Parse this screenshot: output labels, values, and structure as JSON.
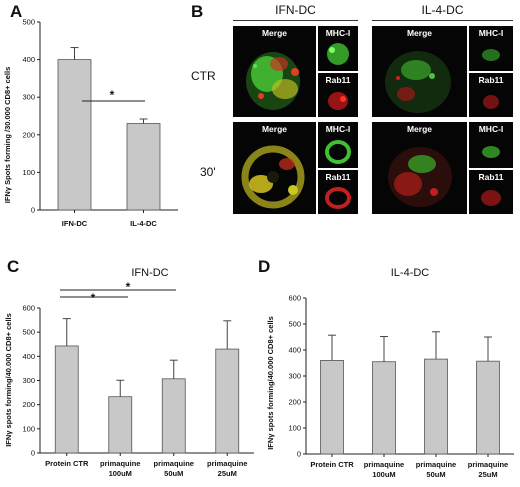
{
  "figure": {
    "panel_a": {
      "letter": "A",
      "ylabel": "IFNγ Spots forming /30.000 CD8+ cells",
      "significance": "*"
    },
    "panel_b": {
      "letter": "B",
      "groups": [
        "IFN-DC",
        "IL-4-DC"
      ],
      "rows": [
        "CTR",
        "30'"
      ],
      "tile_labels": {
        "merge": "Merge",
        "mhc": "MHC-I",
        "rab": "Rab11"
      }
    },
    "panel_c": {
      "letter": "C",
      "title": "IFN-DC",
      "ylabel": "IFNγ spots forming/40.000 CD8+ cells",
      "significance": [
        "*",
        "*"
      ]
    },
    "panel_d": {
      "letter": "D",
      "title": "IL-4-DC",
      "ylabel": "IFNγ spots forming/40.000 CD8+ cells"
    }
  },
  "chart_data": [
    {
      "id": "A",
      "type": "bar",
      "categories": [
        "IFN-DC",
        "IL-4-DC"
      ],
      "values": [
        400,
        230
      ],
      "errors": [
        32,
        12
      ],
      "ylim": [
        0,
        500
      ],
      "yticks": [
        0,
        100,
        200,
        300,
        400,
        500
      ],
      "ylabel": "IFNγ Spots forming /30.000 CD8+ cells",
      "title": ""
    },
    {
      "id": "C",
      "type": "bar",
      "categories": [
        [
          "Protein CTR"
        ],
        [
          "primaquine",
          "100uM"
        ],
        [
          "primaquine",
          "50uM"
        ],
        [
          "primaquine",
          "25uM"
        ]
      ],
      "values": [
        443,
        233,
        307,
        430
      ],
      "errors": [
        113,
        68,
        77,
        117
      ],
      "ylim": [
        0,
        600
      ],
      "yticks": [
        0,
        100,
        200,
        300,
        400,
        500,
        600
      ],
      "ylabel": "IFNγ spots forming/40.000 CD8+ cells",
      "title": "IFN-DC"
    },
    {
      "id": "D",
      "type": "bar",
      "categories": [
        [
          "Protein CTR"
        ],
        [
          "primaquine",
          "100uM"
        ],
        [
          "primaquine",
          "50uM"
        ],
        [
          "primaquine",
          "25uM"
        ]
      ],
      "values": [
        360,
        355,
        365,
        357
      ],
      "errors": [
        97,
        97,
        105,
        93
      ],
      "ylim": [
        0,
        600
      ],
      "yticks": [
        0,
        100,
        200,
        300,
        400,
        500,
        600
      ],
      "ylabel": "IFNγ spots forming/40.000 CD8+ cells",
      "title": "IL-4-DC"
    }
  ]
}
